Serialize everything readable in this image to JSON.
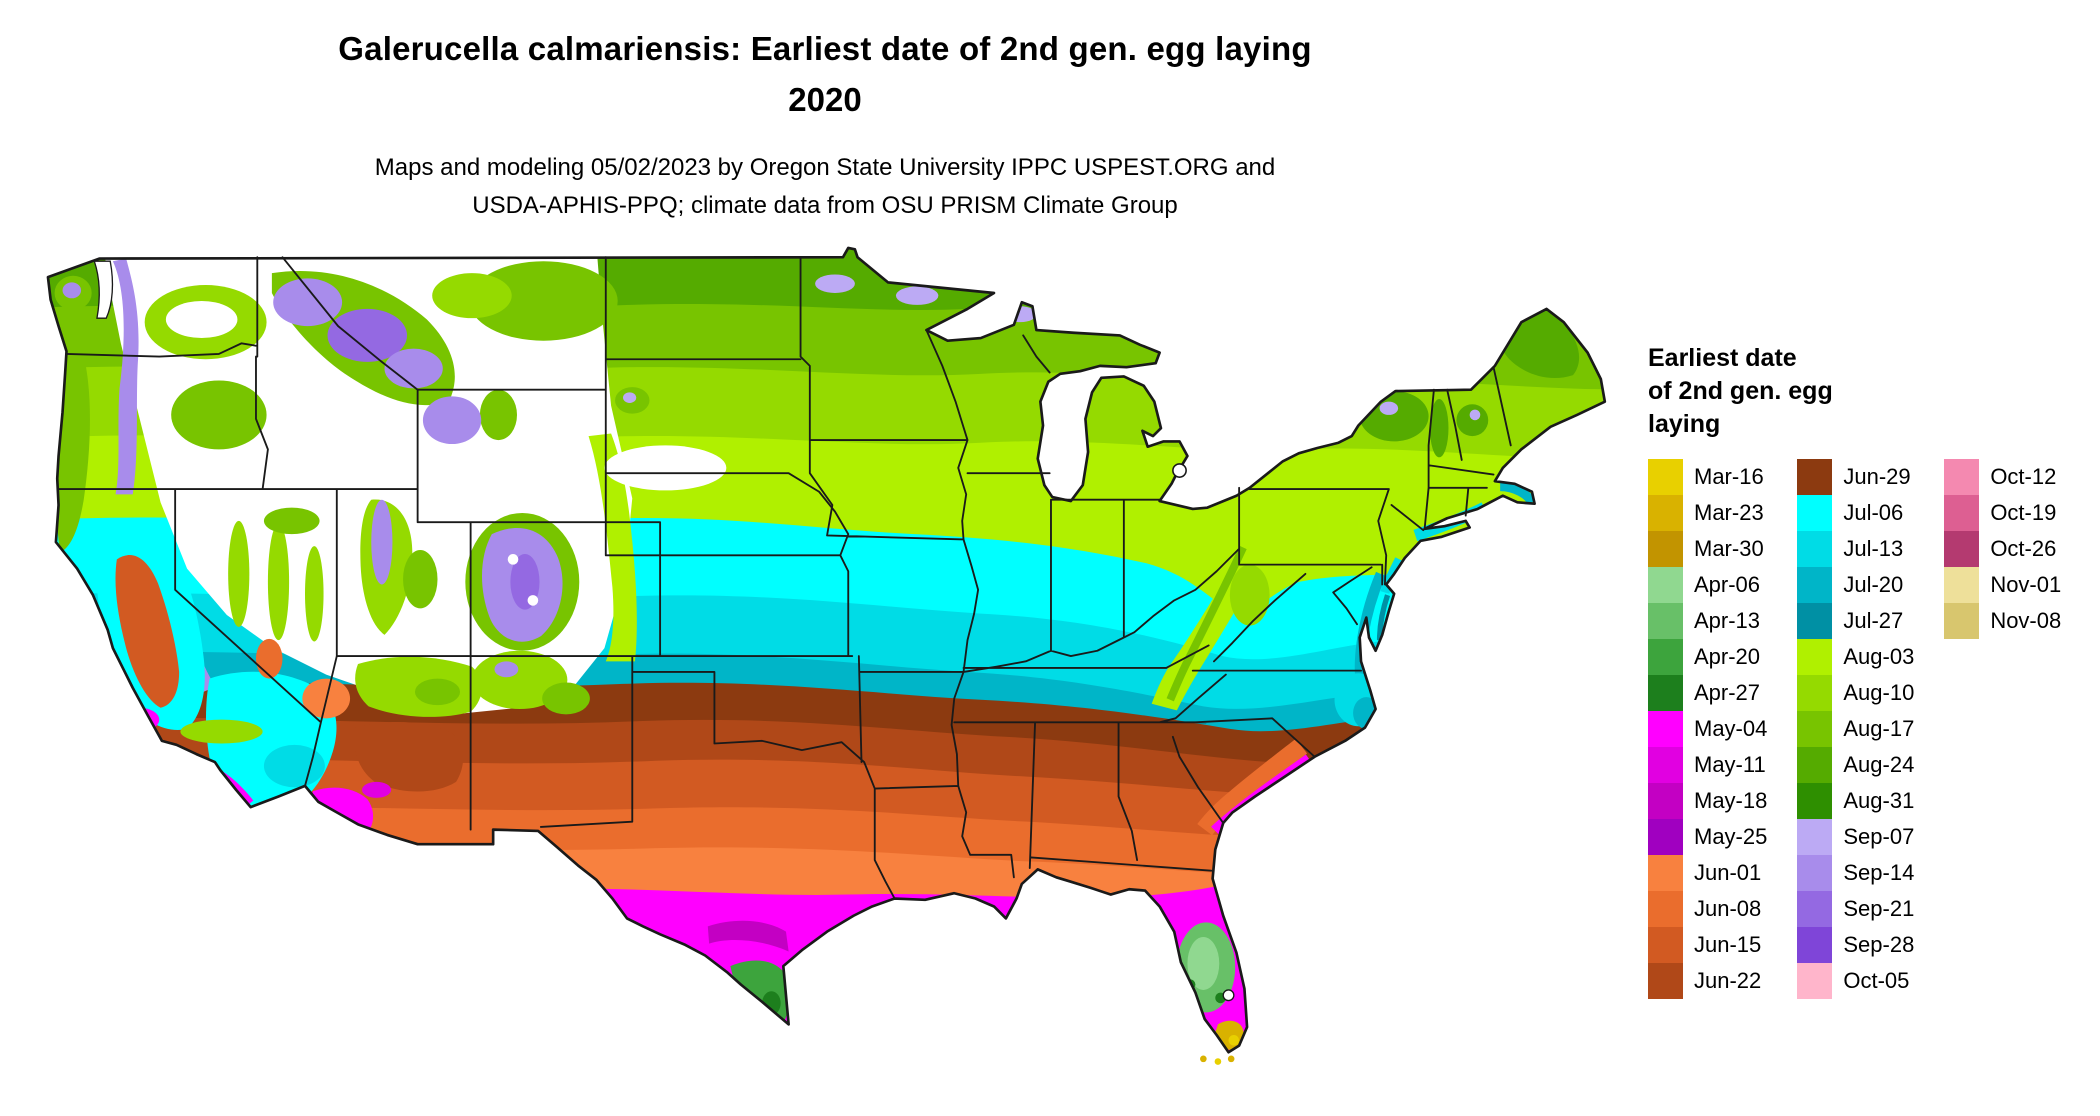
{
  "title": {
    "line1": "Galerucella calmariensis: Earliest date of 2nd gen. egg laying",
    "line2": "2020"
  },
  "subtitle": {
    "line1": "Maps and modeling 05/02/2023 by Oregon State University IPPC USPEST.ORG and",
    "line2": "USDA-APHIS-PPQ; climate data from OSU PRISM Climate Group"
  },
  "legend": {
    "title_lines": [
      "Earliest date",
      "of 2nd gen. egg",
      "laying"
    ],
    "columns": [
      [
        {
          "label": "Mar-16",
          "key": "mar16"
        },
        {
          "label": "Mar-23",
          "key": "mar23"
        },
        {
          "label": "Mar-30",
          "key": "mar30"
        },
        {
          "label": "Apr-06",
          "key": "apr06"
        },
        {
          "label": "Apr-13",
          "key": "apr13"
        },
        {
          "label": "Apr-20",
          "key": "apr20"
        },
        {
          "label": "Apr-27",
          "key": "apr27"
        },
        {
          "label": "May-04",
          "key": "may04"
        },
        {
          "label": "May-11",
          "key": "may11"
        },
        {
          "label": "May-18",
          "key": "may18"
        },
        {
          "label": "May-25",
          "key": "may25"
        },
        {
          "label": "Jun-01",
          "key": "jun01"
        },
        {
          "label": "Jun-08",
          "key": "jun08"
        },
        {
          "label": "Jun-15",
          "key": "jun15"
        },
        {
          "label": "Jun-22",
          "key": "jun22"
        }
      ],
      [
        {
          "label": "Jun-29",
          "key": "jun29"
        },
        {
          "label": "Jul-06",
          "key": "jul06"
        },
        {
          "label": "Jul-13",
          "key": "jul13"
        },
        {
          "label": "Jul-20",
          "key": "jul20"
        },
        {
          "label": "Jul-27",
          "key": "jul27"
        },
        {
          "label": "Aug-03",
          "key": "aug03"
        },
        {
          "label": "Aug-10",
          "key": "aug10"
        },
        {
          "label": "Aug-17",
          "key": "aug17"
        },
        {
          "label": "Aug-24",
          "key": "aug24"
        },
        {
          "label": "Aug-31",
          "key": "aug31"
        },
        {
          "label": "Sep-07",
          "key": "sep07"
        },
        {
          "label": "Sep-14",
          "key": "sep14"
        },
        {
          "label": "Sep-21",
          "key": "sep21"
        },
        {
          "label": "Sep-28",
          "key": "sep28"
        },
        {
          "label": "Oct-05",
          "key": "oct05"
        }
      ],
      [
        {
          "label": "Oct-12",
          "key": "oct12"
        },
        {
          "label": "Oct-19",
          "key": "oct19"
        },
        {
          "label": "Oct-26",
          "key": "oct26"
        },
        {
          "label": "Nov-01",
          "key": "nov01"
        },
        {
          "label": "Nov-08",
          "key": "nov08"
        }
      ]
    ]
  },
  "map": {
    "name": "Contiguous United States phenology raster",
    "palette": {
      "mar16": "#e8d000",
      "mar23": "#d9b200",
      "mar30": "#c29400",
      "apr06": "#90d890",
      "apr13": "#68c068",
      "apr20": "#3da43d",
      "apr27": "#1d7f1d",
      "may04": "#ff00ff",
      "may11": "#e100e1",
      "may18": "#c300c3",
      "may25": "#a000c0",
      "jun01": "#f8813f",
      "jun08": "#ea6d2d",
      "jun15": "#d25a22",
      "jun22": "#b04818",
      "jun29": "#8c3a10",
      "jul06": "#00ffff",
      "jul13": "#00dce6",
      "jul20": "#00b5c8",
      "jul27": "#0090a4",
      "aug03": "#b0f000",
      "aug10": "#95da00",
      "aug17": "#78c400",
      "aug24": "#55ab00",
      "aug31": "#2e8f00",
      "sep07": "#bcaaf4",
      "sep14": "#a88ceb",
      "sep21": "#9469e2",
      "sep28": "#7f45d8",
      "oct05": "#ffb5cb",
      "oct12": "#f489b0",
      "oct19": "#dd5f92",
      "oct26": "#b43a70",
      "nov01": "#eee09a",
      "nov08": "#d8c66e",
      "outline": "#1a1a1a",
      "nodata": "#ffffff"
    }
  }
}
